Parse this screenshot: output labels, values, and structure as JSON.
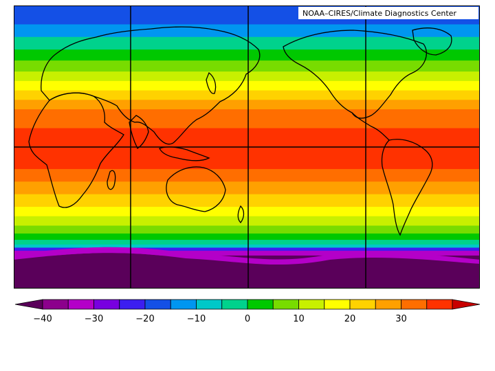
{
  "credit": "NOAA–CIRES/Climate Diagnostics Center",
  "legend": {
    "ticks": [
      "−40",
      "−30",
      "−20",
      "−10",
      "0",
      "10",
      "20",
      "30"
    ],
    "tick_values": [
      -40,
      -30,
      -20,
      -10,
      0,
      10,
      20,
      30
    ],
    "colors": [
      "#5a005a",
      "#8c008c",
      "#b400c8",
      "#7800e0",
      "#3c1ef0",
      "#1450e6",
      "#0096f0",
      "#00c8c8",
      "#00d28c",
      "#00c800",
      "#78dc00",
      "#c8f000",
      "#ffff00",
      "#ffd200",
      "#ffa000",
      "#ff6e00",
      "#ff3200",
      "#c80000"
    ]
  },
  "bands": [
    {
      "lat": 90,
      "color": "#1450e6"
    },
    {
      "lat": 78,
      "color": "#0096f0"
    },
    {
      "lat": 70,
      "color": "#00d28c"
    },
    {
      "lat": 62,
      "color": "#00c800"
    },
    {
      "lat": 55,
      "color": "#78dc00"
    },
    {
      "lat": 48,
      "color": "#c8f000"
    },
    {
      "lat": 42,
      "color": "#ffff00"
    },
    {
      "lat": 36,
      "color": "#ffd200"
    },
    {
      "lat": 30,
      "color": "#ffa000"
    },
    {
      "lat": 24,
      "color": "#ff6e00"
    },
    {
      "lat": 12,
      "color": "#ff3200"
    },
    {
      "lat": -14,
      "color": "#ff6e00"
    },
    {
      "lat": -22,
      "color": "#ffa000"
    },
    {
      "lat": -30,
      "color": "#ffd200"
    },
    {
      "lat": -38,
      "color": "#ffff00"
    },
    {
      "lat": -44,
      "color": "#c8f000"
    },
    {
      "lat": -50,
      "color": "#78dc00"
    },
    {
      "lat": -55,
      "color": "#00c800"
    },
    {
      "lat": -59,
      "color": "#00d28c"
    },
    {
      "lat": -62,
      "color": "#00c8c8"
    },
    {
      "lat": -64,
      "color": "#3c1ef0"
    },
    {
      "lat": -66,
      "color": "#b400c8"
    },
    {
      "lat": -69,
      "color": "#5a005a"
    }
  ]
}
